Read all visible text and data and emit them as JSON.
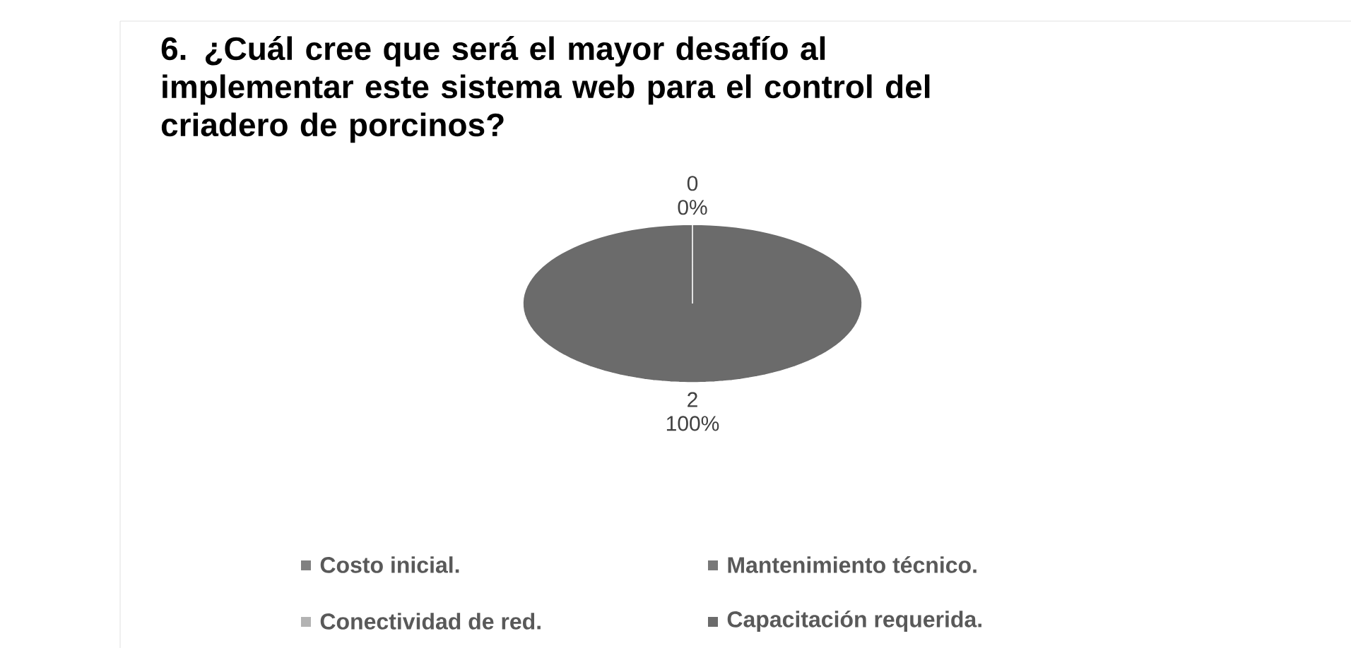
{
  "chart_data": {
    "type": "pie",
    "title": "6. ¿Cuál cree que será el mayor desafío al implementar este sistema web para el control del criadero de porcinos?",
    "categories": [
      "Costo inicial.",
      "Mantenimiento técnico.",
      "Conectividad de red.",
      "Capacitación requerida."
    ],
    "values": [
      0,
      0,
      0,
      2
    ],
    "colors": [
      "#808080",
      "#787878",
      "#b3b3b3",
      "#6b6b6b"
    ],
    "value_labels": [
      "0",
      null,
      null,
      "2"
    ],
    "annotations": [
      "0%",
      "100%"
    ],
    "legend": "bottom"
  }
}
